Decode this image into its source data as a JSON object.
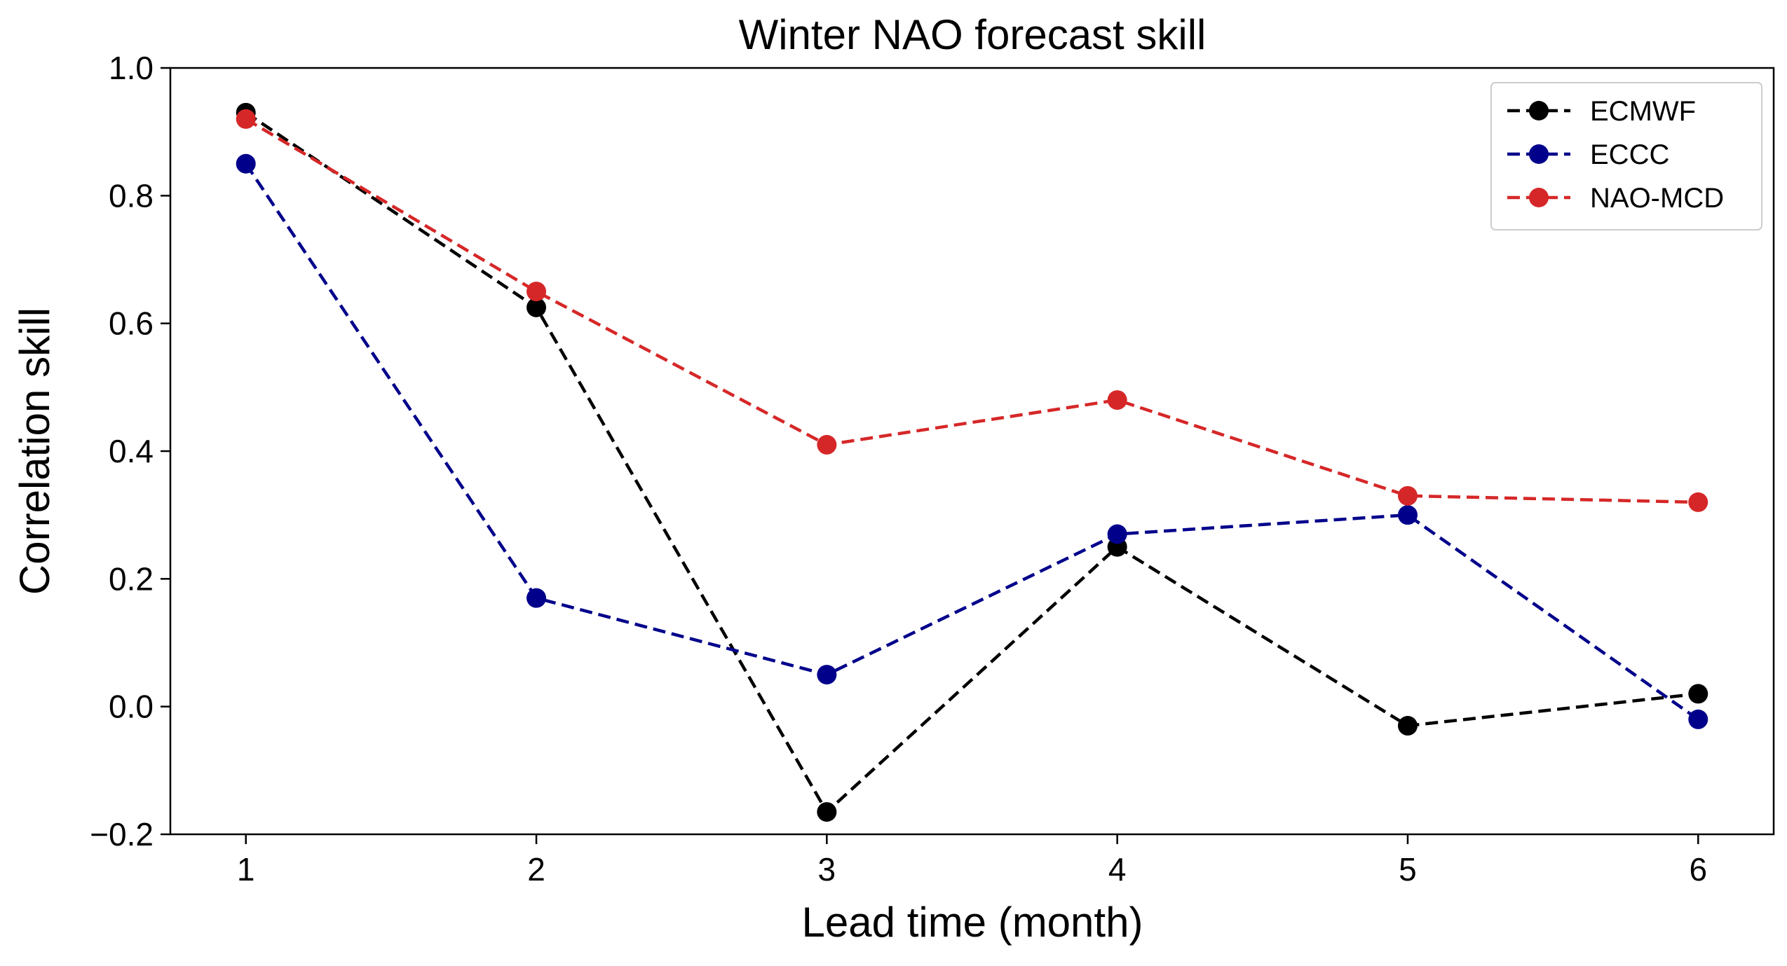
{
  "chart_data": {
    "type": "line",
    "title": "Winter NAO forecast skill",
    "xlabel": "Lead time (month)",
    "ylabel": "Correlation skill",
    "x": [
      1,
      2,
      3,
      4,
      5,
      6
    ],
    "x_ticks": [
      "1",
      "2",
      "3",
      "4",
      "5",
      "6"
    ],
    "y_ticks": [
      "−0.2",
      "0.0",
      "0.2",
      "0.4",
      "0.6",
      "0.8",
      "1.0"
    ],
    "y_tick_values": [
      -0.2,
      0.0,
      0.2,
      0.4,
      0.6,
      0.8,
      1.0
    ],
    "xlim": [
      0.74,
      6.26
    ],
    "ylim": [
      -0.2,
      1.0
    ],
    "grid": false,
    "legend_position": "top-right",
    "line_style": "dashed",
    "marker": "circle",
    "series": [
      {
        "name": "ECMWF",
        "color": "#000000",
        "values": [
          0.93,
          0.625,
          -0.165,
          0.25,
          -0.03,
          0.02
        ]
      },
      {
        "name": "ECCC",
        "color": "#00008b",
        "values": [
          0.85,
          0.17,
          0.05,
          0.27,
          0.3,
          -0.02
        ]
      },
      {
        "name": "NAO-MCD",
        "color": "#d62728",
        "values": [
          0.92,
          0.65,
          0.41,
          0.48,
          0.33,
          0.32
        ]
      }
    ]
  }
}
